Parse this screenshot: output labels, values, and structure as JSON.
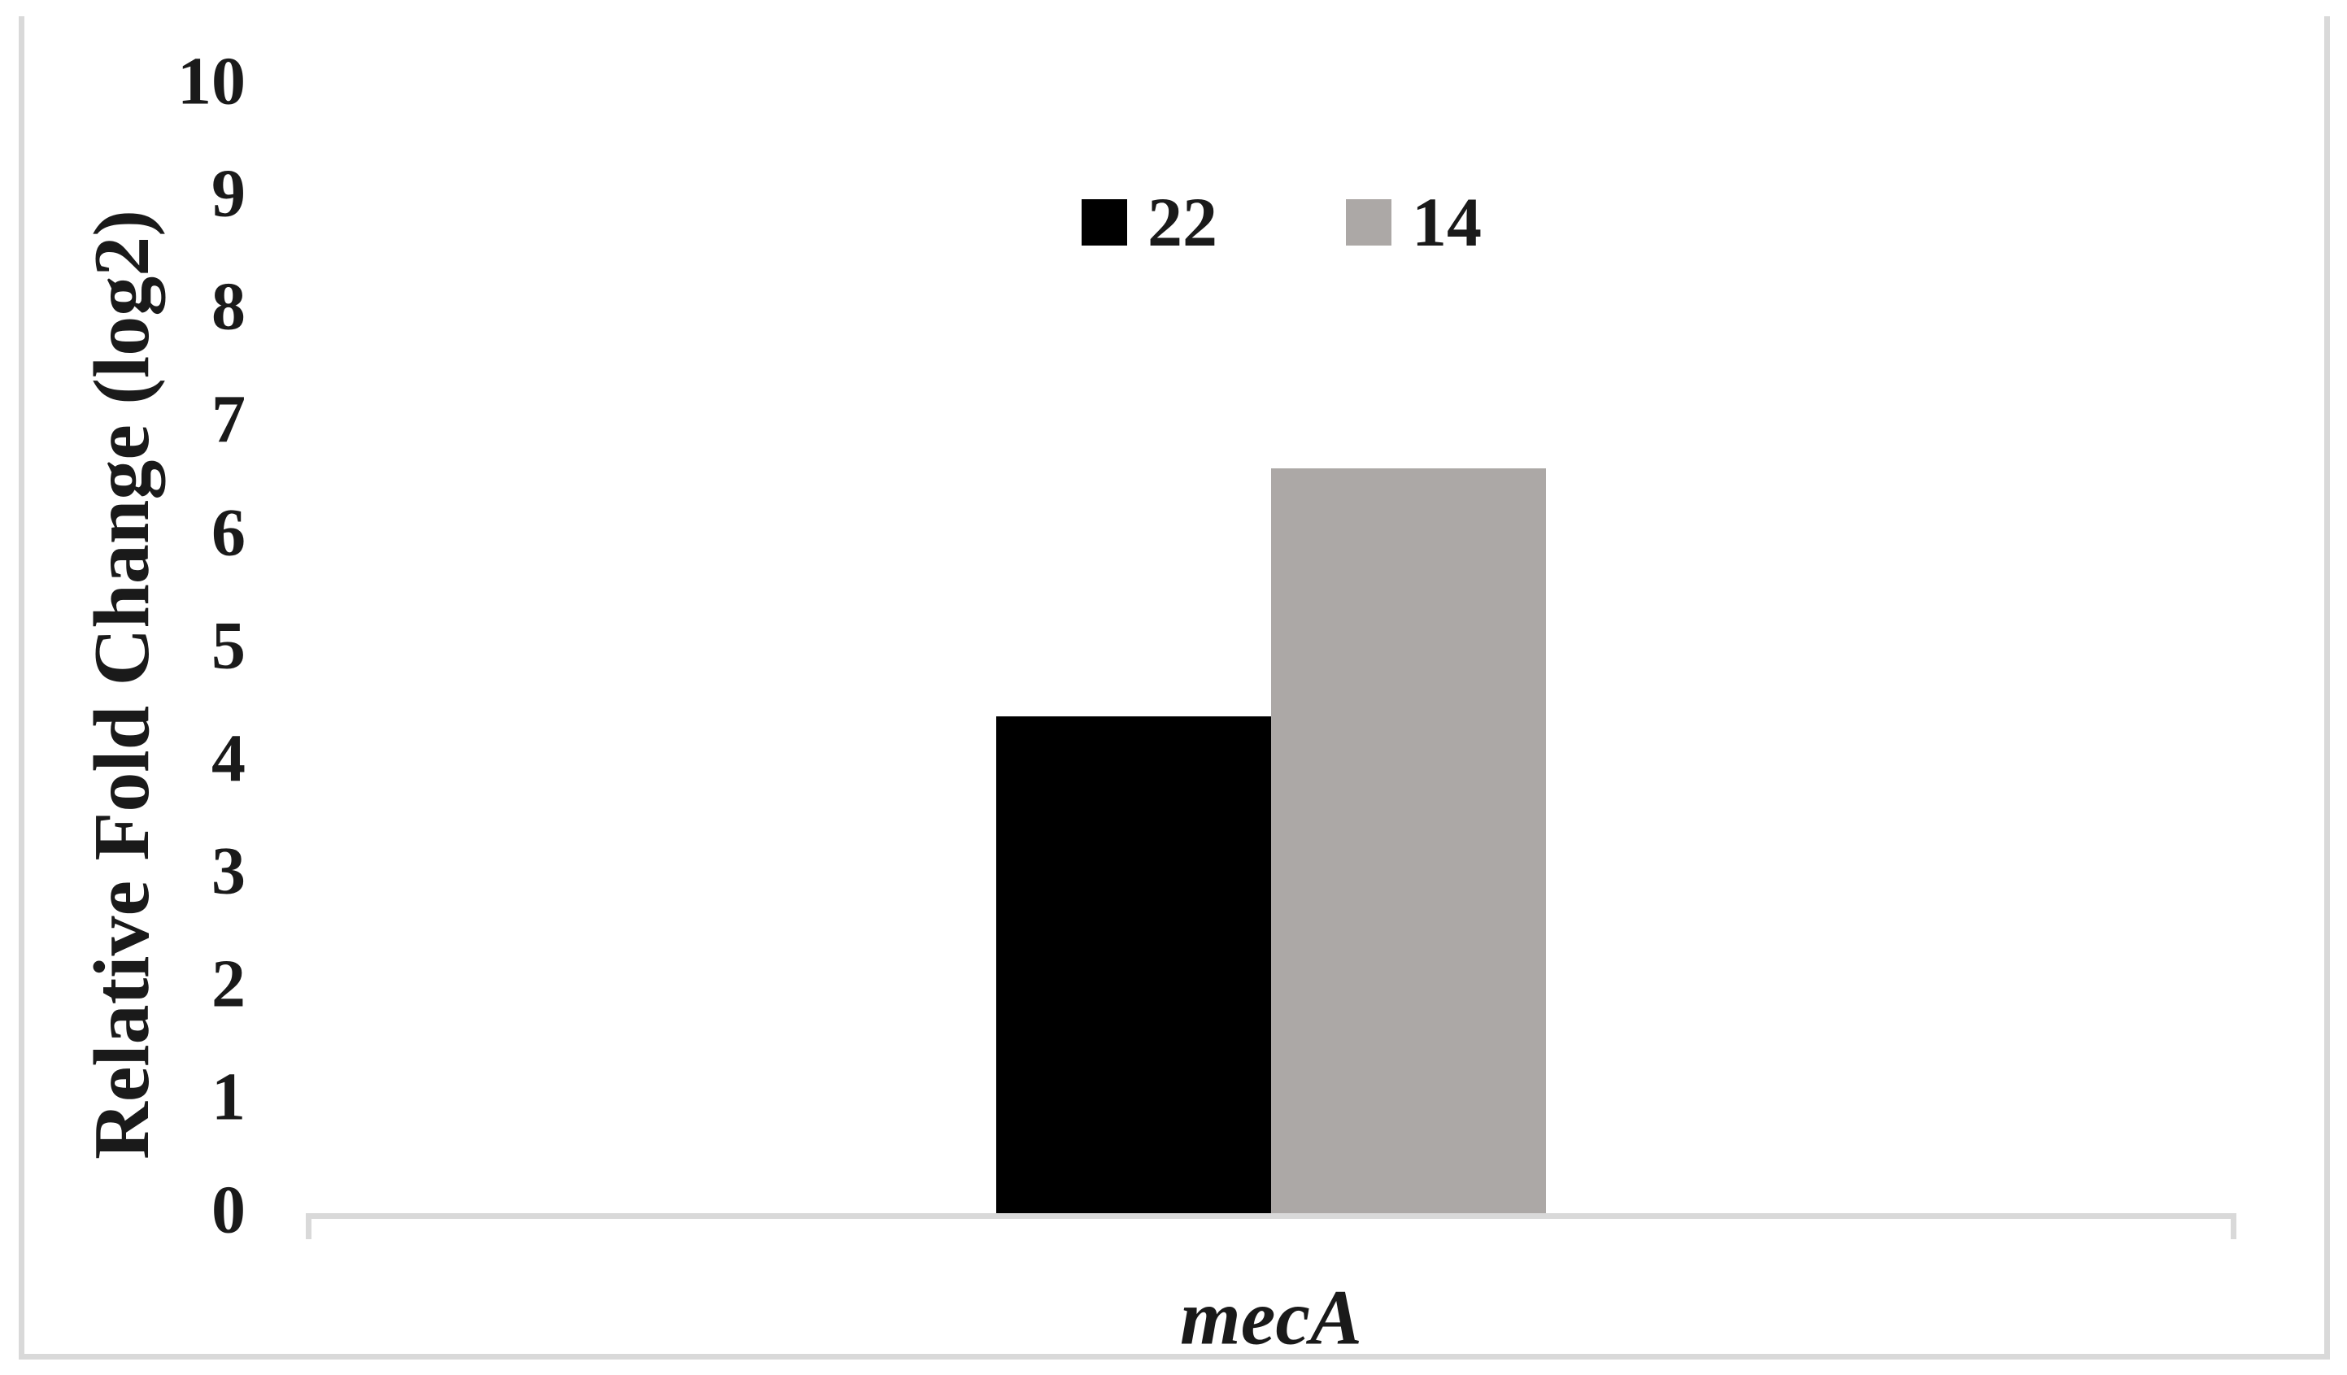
{
  "figure": {
    "x_category_label": "mecA"
  },
  "chart_data": {
    "type": "bar",
    "title": "",
    "xlabel": "",
    "ylabel": "Relative Fold Change (log2)",
    "categories": [
      "mecA"
    ],
    "series": [
      {
        "name": "22",
        "values": [
          4.4
        ],
        "color": "#000000"
      },
      {
        "name": "14",
        "values": [
          6.6
        ],
        "color": "#aca8a6"
      }
    ],
    "ylim": [
      0,
      10
    ],
    "yticks": [
      0,
      1,
      2,
      3,
      4,
      5,
      6,
      7,
      8,
      9,
      10
    ],
    "grid": false,
    "legend_position": "top-center",
    "legend_labels": [
      "22",
      "14"
    ],
    "axis_color": "#d9d9d9",
    "background": "#ffffff"
  }
}
